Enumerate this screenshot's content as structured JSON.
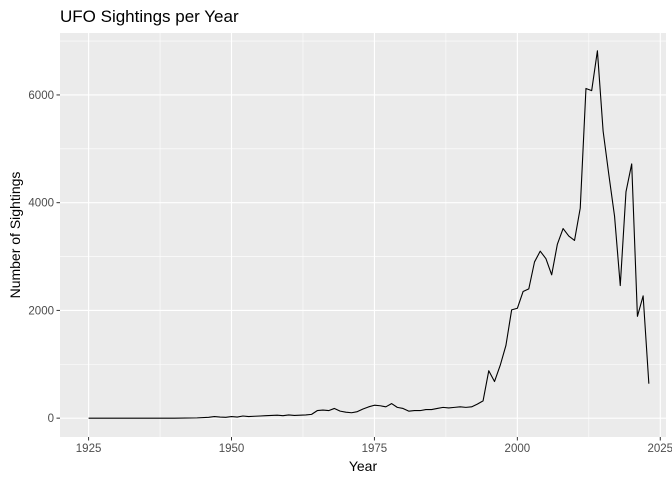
{
  "chart_data": {
    "type": "line",
    "title": "UFO Sightings per Year",
    "xlabel": "Year",
    "ylabel": "Number of Sightings",
    "xlim": [
      1920,
      2026
    ],
    "ylim": [
      -350,
      7150
    ],
    "x_ticks": [
      1925,
      1950,
      1975,
      2000,
      2025
    ],
    "y_ticks": [
      0,
      2000,
      4000,
      6000
    ],
    "x_ticks_labels": [
      "1925",
      "1950",
      "1975",
      "2000",
      "2025"
    ],
    "y_ticks_labels": [
      "0",
      "2000",
      "4000",
      "6000"
    ],
    "grid": true,
    "legend": "none",
    "colors": {
      "panel": "#ebebeb",
      "grid": "#ffffff",
      "line": "#000000",
      "tick_text": "#4d4d4d"
    },
    "series": [
      {
        "x": [
          1925,
          1930,
          1935,
          1940,
          1944,
          1946,
          1947,
          1948,
          1949,
          1950,
          1951,
          1952,
          1953,
          1954,
          1955,
          1956,
          1957,
          1958,
          1959,
          1960,
          1961,
          1962,
          1963,
          1964,
          1965,
          1966,
          1967,
          1968,
          1969,
          1970,
          1971,
          1972,
          1973,
          1974,
          1975,
          1976,
          1977,
          1978,
          1979,
          1980,
          1981,
          1982,
          1983,
          1984,
          1985,
          1986,
          1987,
          1988,
          1989,
          1990,
          1991,
          1992,
          1993,
          1994,
          1995,
          1996,
          1997,
          1998,
          1999,
          2000,
          2001,
          2002,
          2003,
          2004,
          2005,
          2006,
          2007,
          2008,
          2009,
          2010,
          2011,
          2012,
          2013,
          2014,
          2015,
          2016,
          2017,
          2018,
          2019,
          2020,
          2021,
          2022,
          2023
        ],
        "y": [
          0,
          0,
          0,
          0,
          5,
          15,
          30,
          20,
          15,
          30,
          20,
          40,
          30,
          35,
          40,
          45,
          50,
          55,
          45,
          60,
          50,
          55,
          60,
          70,
          140,
          150,
          140,
          180,
          130,
          110,
          100,
          120,
          170,
          210,
          240,
          230,
          210,
          270,
          200,
          180,
          130,
          140,
          140,
          160,
          160,
          180,
          200,
          190,
          200,
          210,
          200,
          210,
          260,
          320,
          880,
          680,
          980,
          1350,
          2010,
          2040,
          2350,
          2400,
          2900,
          3100,
          2960,
          2660,
          3230,
          3520,
          3380,
          3300,
          3900,
          6120,
          6080,
          6820,
          5330,
          4520,
          3750,
          2460,
          4200,
          4720,
          1890,
          2270,
          640
        ]
      }
    ]
  }
}
